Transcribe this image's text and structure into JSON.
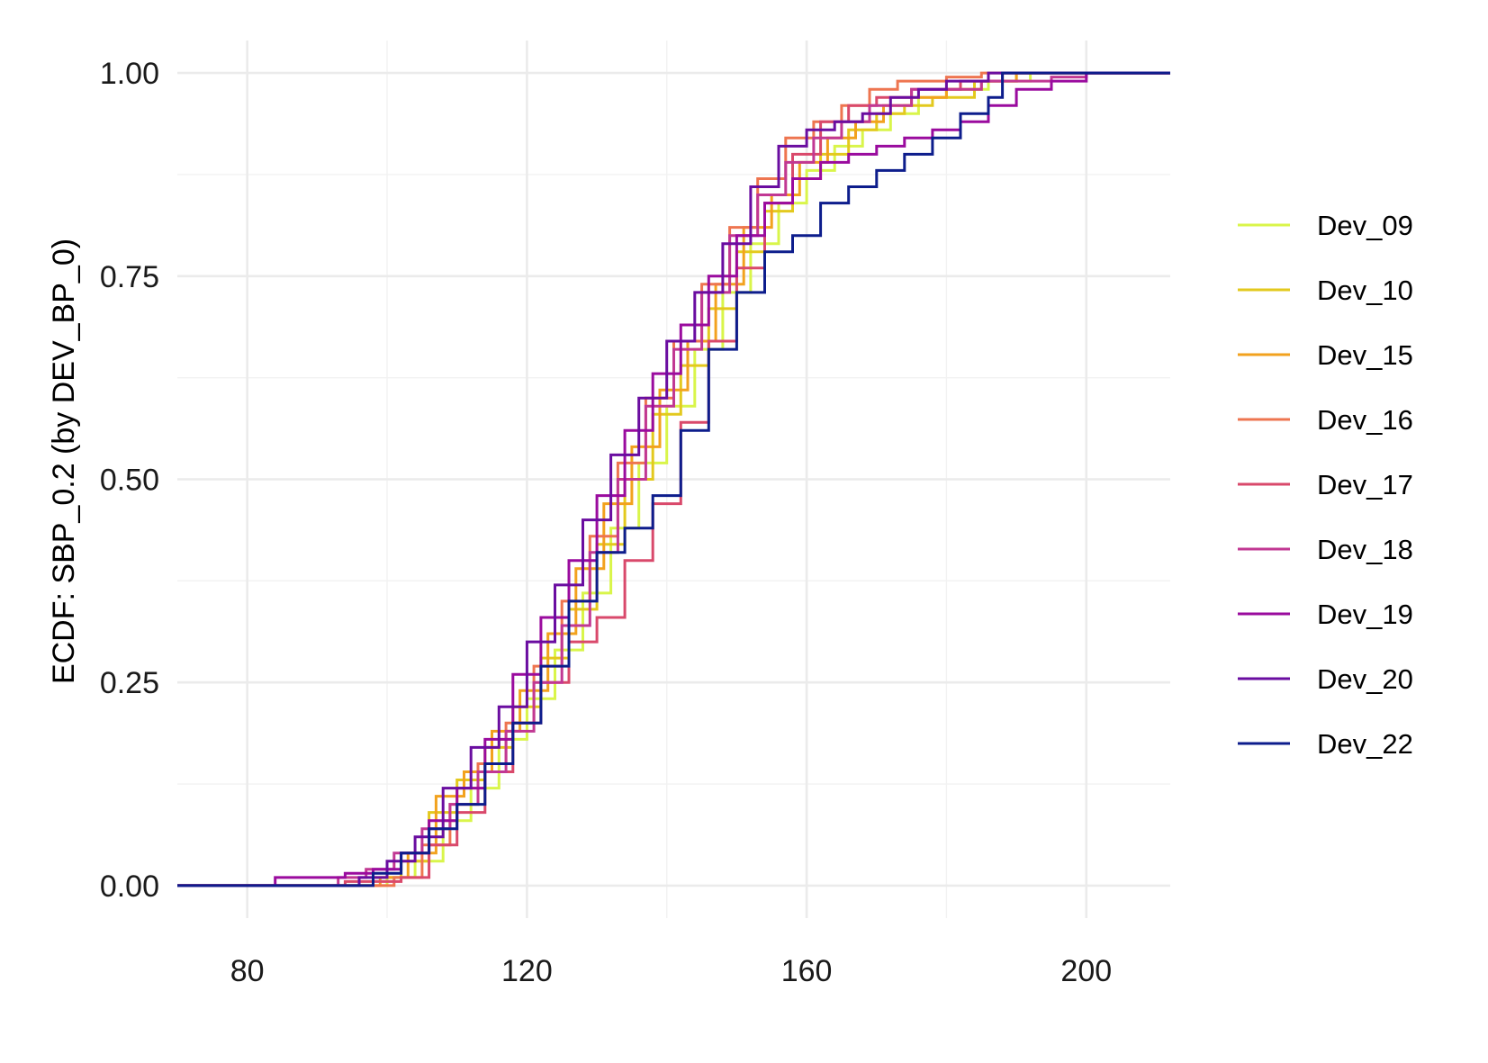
{
  "chart_data": {
    "type": "line",
    "subtype": "ecdf-step",
    "ylabel": "ECDF: SBP_0.2 (by DEV_BP_0)",
    "xlabel": "",
    "xlim": [
      70,
      212
    ],
    "ylim": [
      -0.04,
      1.04
    ],
    "x_ticks": [
      80,
      120,
      160,
      200
    ],
    "x_tick_labels": [
      "80",
      "120",
      "160",
      "200"
    ],
    "x_minor_ticks": [
      100,
      140,
      180
    ],
    "y_ticks": [
      0,
      0.25,
      0.5,
      0.75,
      1
    ],
    "y_tick_labels": [
      "0.00",
      "0.25",
      "0.50",
      "0.75",
      "1.00"
    ],
    "y_minor_ticks": [
      0.125,
      0.375,
      0.625,
      0.875
    ],
    "grid": true,
    "legend_position": "right",
    "series": [
      {
        "name": "Dev_09",
        "color": "#D9F54A",
        "points": [
          [
            70,
            0
          ],
          [
            96,
            0
          ],
          [
            100,
            0.01
          ],
          [
            104,
            0.03
          ],
          [
            108,
            0.08
          ],
          [
            112,
            0.12
          ],
          [
            116,
            0.18
          ],
          [
            120,
            0.23
          ],
          [
            124,
            0.29
          ],
          [
            128,
            0.36
          ],
          [
            132,
            0.44
          ],
          [
            136,
            0.52
          ],
          [
            140,
            0.59
          ],
          [
            144,
            0.66
          ],
          [
            148,
            0.73
          ],
          [
            152,
            0.79
          ],
          [
            156,
            0.84
          ],
          [
            160,
            0.88
          ],
          [
            164,
            0.91
          ],
          [
            168,
            0.93
          ],
          [
            172,
            0.95
          ],
          [
            176,
            0.97
          ],
          [
            180,
            0.98
          ],
          [
            186,
            0.99
          ],
          [
            192,
            1.0
          ],
          [
            212,
            1.0
          ]
        ]
      },
      {
        "name": "Dev_10",
        "color": "#E3C91E",
        "points": [
          [
            70,
            0
          ],
          [
            94,
            0
          ],
          [
            98,
            0.01
          ],
          [
            102,
            0.03
          ],
          [
            106,
            0.09
          ],
          [
            110,
            0.13
          ],
          [
            114,
            0.17
          ],
          [
            118,
            0.22
          ],
          [
            122,
            0.28
          ],
          [
            126,
            0.34
          ],
          [
            130,
            0.42
          ],
          [
            134,
            0.5
          ],
          [
            138,
            0.58
          ],
          [
            142,
            0.64
          ],
          [
            146,
            0.71
          ],
          [
            150,
            0.78
          ],
          [
            154,
            0.83
          ],
          [
            158,
            0.87
          ],
          [
            162,
            0.9
          ],
          [
            166,
            0.93
          ],
          [
            170,
            0.95
          ],
          [
            174,
            0.96
          ],
          [
            178,
            0.97
          ],
          [
            184,
            0.99
          ],
          [
            190,
            1.0
          ],
          [
            212,
            1.0
          ]
        ]
      },
      {
        "name": "Dev_15",
        "color": "#F2A21E",
        "points": [
          [
            70,
            0
          ],
          [
            95,
            0
          ],
          [
            99,
            0.01
          ],
          [
            103,
            0.04
          ],
          [
            107,
            0.11
          ],
          [
            111,
            0.14
          ],
          [
            115,
            0.19
          ],
          [
            119,
            0.24
          ],
          [
            123,
            0.31
          ],
          [
            127,
            0.39
          ],
          [
            131,
            0.47
          ],
          [
            135,
            0.54
          ],
          [
            139,
            0.61
          ],
          [
            143,
            0.67
          ],
          [
            147,
            0.74
          ],
          [
            151,
            0.81
          ],
          [
            155,
            0.85
          ],
          [
            159,
            0.89
          ],
          [
            163,
            0.92
          ],
          [
            167,
            0.94
          ],
          [
            171,
            0.96
          ],
          [
            175,
            0.97
          ],
          [
            180,
            0.98
          ],
          [
            185,
            0.99
          ],
          [
            190,
            1.0
          ],
          [
            212,
            1.0
          ]
        ]
      },
      {
        "name": "Dev_16",
        "color": "#EE7550",
        "points": [
          [
            70,
            0
          ],
          [
            97,
            0
          ],
          [
            101,
            0.01
          ],
          [
            105,
            0.05
          ],
          [
            109,
            0.1
          ],
          [
            113,
            0.15
          ],
          [
            117,
            0.2
          ],
          [
            121,
            0.27
          ],
          [
            125,
            0.35
          ],
          [
            129,
            0.43
          ],
          [
            133,
            0.52
          ],
          [
            137,
            0.6
          ],
          [
            141,
            0.67
          ],
          [
            145,
            0.74
          ],
          [
            149,
            0.81
          ],
          [
            153,
            0.87
          ],
          [
            157,
            0.92
          ],
          [
            161,
            0.94
          ],
          [
            165,
            0.96
          ],
          [
            169,
            0.98
          ],
          [
            173,
            0.99
          ],
          [
            180,
            0.995
          ],
          [
            185,
            1.0
          ],
          [
            212,
            1.0
          ]
        ]
      },
      {
        "name": "Dev_17",
        "color": "#D9496B",
        "points": [
          [
            70,
            0
          ],
          [
            90,
            0
          ],
          [
            94,
            0.005
          ],
          [
            102,
            0.01
          ],
          [
            106,
            0.05
          ],
          [
            110,
            0.09
          ],
          [
            114,
            0.14
          ],
          [
            118,
            0.2
          ],
          [
            122,
            0.25
          ],
          [
            126,
            0.3
          ],
          [
            130,
            0.33
          ],
          [
            134,
            0.4
          ],
          [
            138,
            0.47
          ],
          [
            142,
            0.57
          ],
          [
            146,
            0.67
          ],
          [
            150,
            0.76
          ],
          [
            154,
            0.84
          ],
          [
            158,
            0.9
          ],
          [
            162,
            0.94
          ],
          [
            166,
            0.96
          ],
          [
            170,
            0.97
          ],
          [
            175,
            0.98
          ],
          [
            182,
            0.99
          ],
          [
            188,
            1.0
          ],
          [
            212,
            1.0
          ]
        ]
      },
      {
        "name": "Dev_18",
        "color": "#C13893",
        "points": [
          [
            70,
            0
          ],
          [
            89,
            0
          ],
          [
            93,
            0.01
          ],
          [
            97,
            0.02
          ],
          [
            101,
            0.04
          ],
          [
            105,
            0.07
          ],
          [
            109,
            0.1
          ],
          [
            113,
            0.14
          ],
          [
            117,
            0.19
          ],
          [
            121,
            0.25
          ],
          [
            125,
            0.32
          ],
          [
            129,
            0.41
          ],
          [
            133,
            0.5
          ],
          [
            137,
            0.59
          ],
          [
            141,
            0.66
          ],
          [
            145,
            0.73
          ],
          [
            149,
            0.8
          ],
          [
            153,
            0.85
          ],
          [
            157,
            0.89
          ],
          [
            161,
            0.92
          ],
          [
            165,
            0.94
          ],
          [
            169,
            0.96
          ],
          [
            175,
            0.98
          ],
          [
            185,
            0.99
          ],
          [
            195,
            0.995
          ],
          [
            200,
            1.0
          ],
          [
            212,
            1.0
          ]
        ]
      },
      {
        "name": "Dev_19",
        "color": "#9A0B9E",
        "points": [
          [
            70,
            0
          ],
          [
            84,
            0
          ],
          [
            84,
            0.01
          ],
          [
            94,
            0.015
          ],
          [
            98,
            0.02
          ],
          [
            102,
            0.04
          ],
          [
            106,
            0.08
          ],
          [
            110,
            0.12
          ],
          [
            114,
            0.18
          ],
          [
            118,
            0.26
          ],
          [
            122,
            0.33
          ],
          [
            126,
            0.4
          ],
          [
            130,
            0.48
          ],
          [
            134,
            0.56
          ],
          [
            138,
            0.63
          ],
          [
            142,
            0.69
          ],
          [
            146,
            0.75
          ],
          [
            150,
            0.8
          ],
          [
            154,
            0.84
          ],
          [
            158,
            0.87
          ],
          [
            162,
            0.89
          ],
          [
            166,
            0.9
          ],
          [
            170,
            0.91
          ],
          [
            174,
            0.92
          ],
          [
            178,
            0.93
          ],
          [
            182,
            0.94
          ],
          [
            186,
            0.96
          ],
          [
            190,
            0.98
          ],
          [
            195,
            0.99
          ],
          [
            200,
            1.0
          ],
          [
            212,
            1.0
          ]
        ]
      },
      {
        "name": "Dev_20",
        "color": "#6A0DA0",
        "points": [
          [
            70,
            0
          ],
          [
            92,
            0
          ],
          [
            96,
            0.01
          ],
          [
            100,
            0.03
          ],
          [
            104,
            0.06
          ],
          [
            108,
            0.12
          ],
          [
            112,
            0.17
          ],
          [
            116,
            0.22
          ],
          [
            120,
            0.3
          ],
          [
            124,
            0.37
          ],
          [
            128,
            0.45
          ],
          [
            132,
            0.53
          ],
          [
            136,
            0.6
          ],
          [
            140,
            0.67
          ],
          [
            144,
            0.73
          ],
          [
            148,
            0.79
          ],
          [
            152,
            0.86
          ],
          [
            156,
            0.91
          ],
          [
            160,
            0.93
          ],
          [
            164,
            0.94
          ],
          [
            168,
            0.95
          ],
          [
            172,
            0.97
          ],
          [
            176,
            0.98
          ],
          [
            180,
            0.99
          ],
          [
            186,
            1.0
          ],
          [
            212,
            1.0
          ]
        ]
      },
      {
        "name": "Dev_22",
        "color": "#0D1D8C",
        "points": [
          [
            70,
            0
          ],
          [
            94,
            0
          ],
          [
            98,
            0.015
          ],
          [
            102,
            0.04
          ],
          [
            106,
            0.07
          ],
          [
            110,
            0.1
          ],
          [
            114,
            0.15
          ],
          [
            118,
            0.2
          ],
          [
            122,
            0.27
          ],
          [
            126,
            0.35
          ],
          [
            130,
            0.41
          ],
          [
            134,
            0.44
          ],
          [
            138,
            0.48
          ],
          [
            142,
            0.56
          ],
          [
            146,
            0.66
          ],
          [
            150,
            0.73
          ],
          [
            154,
            0.78
          ],
          [
            158,
            0.8
          ],
          [
            162,
            0.84
          ],
          [
            166,
            0.86
          ],
          [
            170,
            0.88
          ],
          [
            174,
            0.9
          ],
          [
            178,
            0.92
          ],
          [
            182,
            0.95
          ],
          [
            186,
            0.97
          ],
          [
            188,
            1.0
          ],
          [
            212,
            1.0
          ]
        ]
      }
    ]
  }
}
